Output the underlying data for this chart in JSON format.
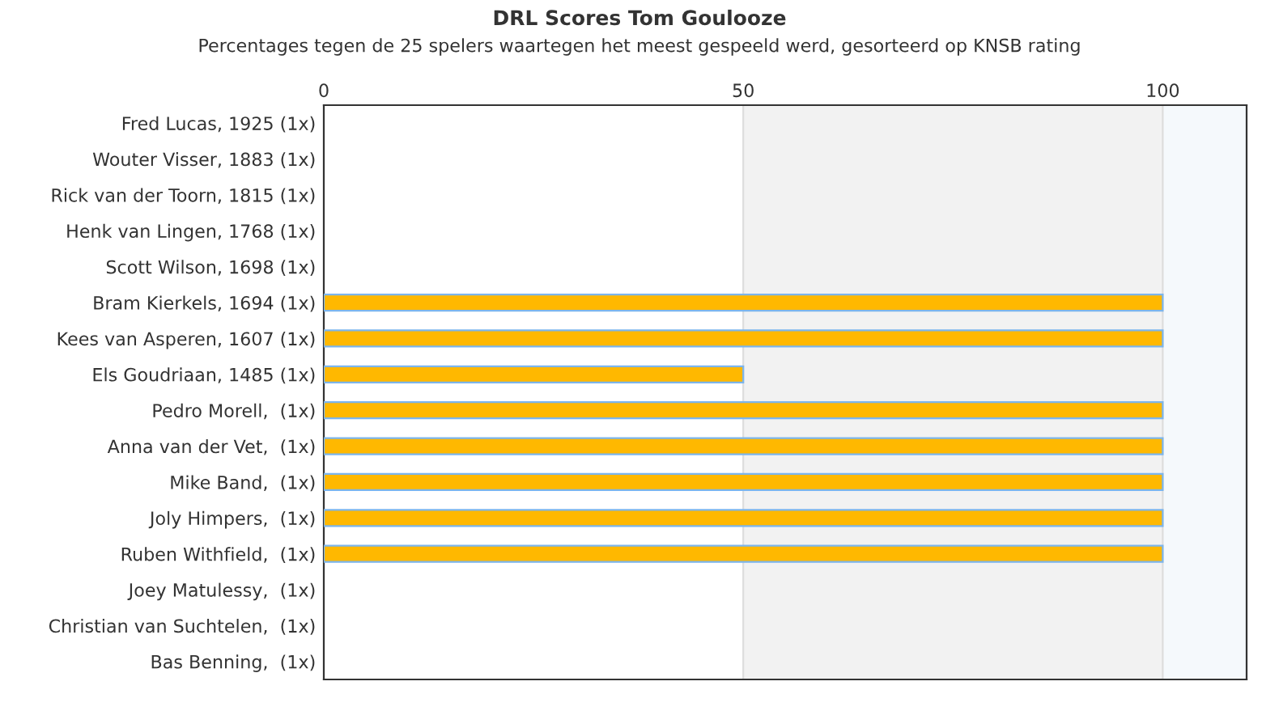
{
  "chart_data": {
    "type": "bar",
    "orientation": "horizontal",
    "title": "DRL Scores Tom Goulooze",
    "subtitle": "Percentages tegen de 25 spelers waartegen het meest gespeeld werd, gesorteerd op KNSB rating",
    "categories": [
      "Fred Lucas, 1925 (1x)",
      "Wouter Visser, 1883 (1x)",
      "Rick van der Toorn, 1815 (1x)",
      "Henk van Lingen, 1768 (1x)",
      "Scott Wilson, 1698 (1x)",
      "Bram Kierkels, 1694 (1x)",
      "Kees van Asperen, 1607 (1x)",
      "Els Goudriaan, 1485 (1x)",
      "Pedro Morell,  (1x)",
      "Anna van der Vet,  (1x)",
      "Mike Band,  (1x)",
      "Joly Himpers,  (1x)",
      "Ruben Withfield,  (1x)",
      "Joey Matulessy,  (1x)",
      "Christian van Suchtelen,  (1x)",
      "Bas Benning,  (1x)"
    ],
    "values": [
      null,
      null,
      null,
      null,
      null,
      100,
      100,
      50,
      100,
      100,
      100,
      100,
      100,
      null,
      null,
      null
    ],
    "color": "#ffb800",
    "xlim": [
      0,
      110
    ],
    "xticks": [
      0,
      50,
      100
    ],
    "grid": "x",
    "bands": [
      {
        "axis": "x",
        "from": 50,
        "to": 100,
        "color": "#f2f2f2"
      },
      {
        "axis": "x",
        "from": 100,
        "to": 110,
        "color": "#f5f9fc"
      }
    ]
  }
}
